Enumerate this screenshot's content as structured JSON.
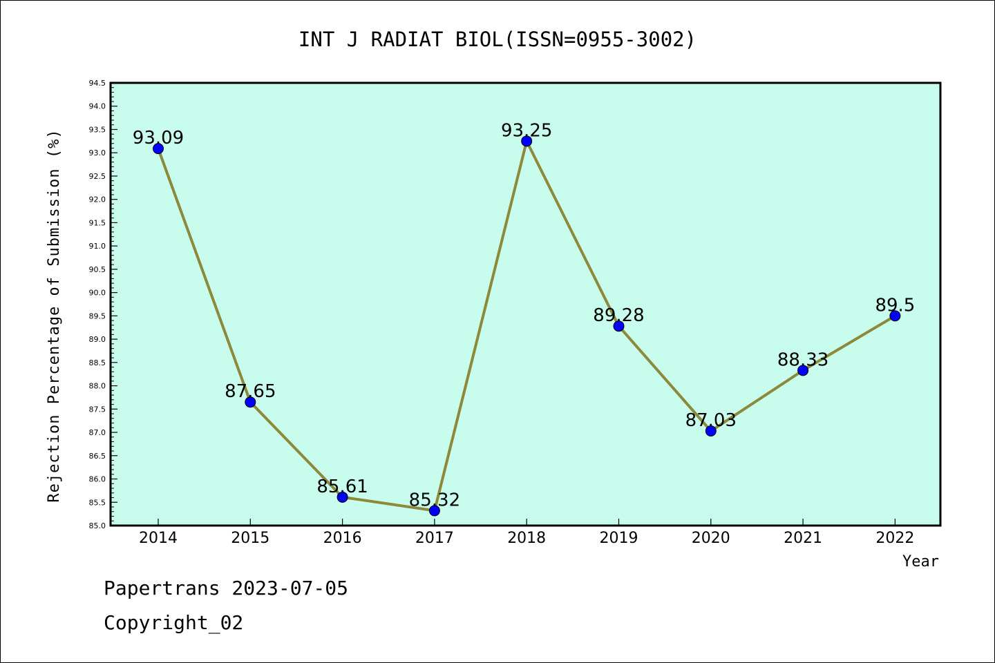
{
  "chart_data": {
    "type": "line",
    "title": "INT J RADIAT BIOL(ISSN=0955-3002)",
    "ylabel": "Rejection Percentage of Submission (%)",
    "xlabel": "Year",
    "categories": [
      "2014",
      "2015",
      "2016",
      "2017",
      "2018",
      "2019",
      "2020",
      "2021",
      "2022"
    ],
    "values": [
      93.09,
      87.65,
      85.61,
      85.32,
      93.25,
      89.28,
      87.03,
      88.33,
      89.5
    ],
    "value_labels": [
      "93.09",
      "87.65",
      "85.61",
      "85.32",
      "93.25",
      "89.28",
      "87.03",
      "88.33",
      "89.5"
    ],
    "ylim": [
      85.0,
      94.5
    ],
    "yticks": [
      "85.0",
      "85.5",
      "86.0",
      "86.5",
      "87.0",
      "87.5",
      "88.0",
      "88.5",
      "89.0",
      "89.5",
      "90.0",
      "90.5",
      "91.0",
      "91.5",
      "92.0",
      "92.5",
      "93.0",
      "93.5",
      "94.0",
      "94.5"
    ],
    "grid": false,
    "plot_background": "#c8fcec",
    "line_color": "#8c8a3a",
    "marker_color": "#0000ff"
  },
  "footer": {
    "line1": "Papertrans 2023-07-05",
    "line2": "Copyright_02"
  }
}
